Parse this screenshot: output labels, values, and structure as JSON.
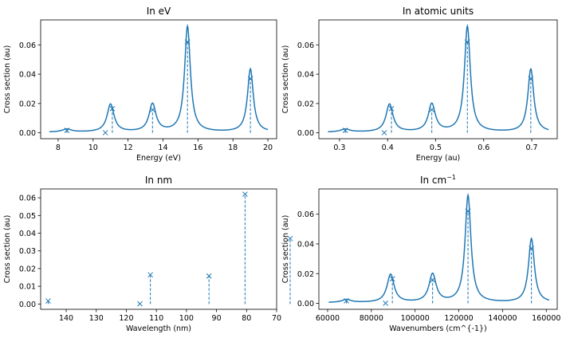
{
  "figure": {
    "background": "#ffffff",
    "line_color": "#1f77b4"
  },
  "chart_data": [
    {
      "type": "line",
      "title": "In eV",
      "title_sup": "",
      "xlabel": "Energy (eV)",
      "ylabel": "Cross section (au)",
      "xlim": [
        7.0,
        20.5
      ],
      "ylim": [
        -0.004,
        0.077
      ],
      "xreverse": false,
      "xticks": [
        8,
        10,
        12,
        14,
        16,
        18,
        20
      ],
      "xticklabels": [
        "8",
        "10",
        "12",
        "14",
        "16",
        "18",
        "20"
      ],
      "yticks": [
        0.0,
        0.02,
        0.04,
        0.06
      ],
      "yticklabels": [
        "0.00",
        "0.02",
        "0.04",
        "0.06"
      ],
      "curve": {
        "x_range": [
          7.5,
          20.0
        ],
        "baseline": 0.0004,
        "peaks": [
          {
            "x": 8.5,
            "height": 0.002,
            "width": 0.32
          },
          {
            "x": 11.0,
            "height": 0.019,
            "width": 0.24
          },
          {
            "x": 13.4,
            "height": 0.019,
            "width": 0.24
          },
          {
            "x": 15.4,
            "height": 0.072,
            "width": 0.2
          },
          {
            "x": 19.0,
            "height": 0.043,
            "width": 0.2
          }
        ]
      },
      "sticks": [
        {
          "x": 8.5,
          "y": 0.0017
        },
        {
          "x": 10.7,
          "y": 0.0001
        },
        {
          "x": 11.1,
          "y": 0.0165
        },
        {
          "x": 13.4,
          "y": 0.0158
        },
        {
          "x": 15.4,
          "y": 0.062
        },
        {
          "x": 19.0,
          "y": 0.037
        }
      ]
    },
    {
      "type": "line",
      "title": "In atomic units",
      "title_sup": "",
      "xlabel": "Energy (au)",
      "ylabel": "Cross section (au)",
      "xlim": [
        0.257,
        0.753
      ],
      "ylim": [
        -0.004,
        0.077
      ],
      "xreverse": false,
      "xticks": [
        0.3,
        0.4,
        0.5,
        0.6,
        0.7
      ],
      "xticklabels": [
        "0.3",
        "0.4",
        "0.5",
        "0.6",
        "0.7"
      ],
      "yticks": [
        0.0,
        0.02,
        0.04,
        0.06
      ],
      "yticklabels": [
        "0.00",
        "0.02",
        "0.04",
        "0.06"
      ],
      "curve": {
        "x_range": [
          0.276,
          0.735
        ],
        "baseline": 0.0004,
        "peaks": [
          {
            "x": 0.312,
            "height": 0.002,
            "width": 0.0118
          },
          {
            "x": 0.404,
            "height": 0.019,
            "width": 0.0088
          },
          {
            "x": 0.492,
            "height": 0.019,
            "width": 0.0088
          },
          {
            "x": 0.566,
            "height": 0.072,
            "width": 0.0074
          },
          {
            "x": 0.698,
            "height": 0.043,
            "width": 0.0074
          }
        ]
      },
      "sticks": [
        {
          "x": 0.312,
          "y": 0.0017
        },
        {
          "x": 0.393,
          "y": 0.0001
        },
        {
          "x": 0.408,
          "y": 0.0165
        },
        {
          "x": 0.492,
          "y": 0.0158
        },
        {
          "x": 0.566,
          "y": 0.062
        },
        {
          "x": 0.698,
          "y": 0.037
        }
      ]
    },
    {
      "type": "scatter",
      "title": "In nm",
      "title_sup": "",
      "xlabel": "Wavelength (nm)",
      "ylabel": "Cross section (au)",
      "xlim": [
        148.5,
        70.0
      ],
      "ylim": [
        -0.003,
        0.065
      ],
      "xreverse": true,
      "xticks": [
        140,
        130,
        120,
        110,
        100,
        90,
        80,
        70
      ],
      "xticklabels": [
        "140",
        "130",
        "120",
        "110",
        "100",
        "90",
        "80",
        "70"
      ],
      "yticks": [
        0.0,
        0.01,
        0.02,
        0.03,
        0.04,
        0.05,
        0.06
      ],
      "yticklabels": [
        "0.00",
        "0.01",
        "0.02",
        "0.03",
        "0.04",
        "0.05",
        "0.06"
      ],
      "curve": null,
      "sticks": [
        {
          "x": 146.0,
          "y": 0.0017
        },
        {
          "x": 115.5,
          "y": 0.0001
        },
        {
          "x": 112.0,
          "y": 0.0165
        },
        {
          "x": 92.5,
          "y": 0.0158
        },
        {
          "x": 80.5,
          "y": 0.062
        },
        {
          "x": 65.5,
          "y": 0.037
        }
      ]
    },
    {
      "type": "line",
      "title": "In cm",
      "title_sup": "−1",
      "xlabel": "Wavenumbers (cm^{-1})",
      "ylabel": "Cross section (au)",
      "xlim": [
        56000,
        165000
      ],
      "ylim": [
        -0.004,
        0.077
      ],
      "xreverse": false,
      "xticks": [
        60000,
        80000,
        100000,
        120000,
        140000,
        160000
      ],
      "xticklabels": [
        "60000",
        "80000",
        "100000",
        "120000",
        "140000",
        "160000"
      ],
      "yticks": [
        0.0,
        0.02,
        0.04,
        0.06
      ],
      "yticklabels": [
        "0.00",
        "0.02",
        "0.04",
        "0.06"
      ],
      "curve": {
        "x_range": [
          60500,
          161300
        ],
        "baseline": 0.0004,
        "peaks": [
          {
            "x": 68600,
            "height": 0.002,
            "width": 2600
          },
          {
            "x": 88800,
            "height": 0.019,
            "width": 1950
          },
          {
            "x": 108000,
            "height": 0.019,
            "width": 1950
          },
          {
            "x": 124200,
            "height": 0.072,
            "width": 1620
          },
          {
            "x": 153200,
            "height": 0.043,
            "width": 1620
          }
        ]
      },
      "sticks": [
        {
          "x": 68600,
          "y": 0.0017
        },
        {
          "x": 86500,
          "y": 0.0001
        },
        {
          "x": 89600,
          "y": 0.0165
        },
        {
          "x": 108000,
          "y": 0.0158
        },
        {
          "x": 124200,
          "y": 0.062
        },
        {
          "x": 153200,
          "y": 0.037
        }
      ]
    }
  ]
}
